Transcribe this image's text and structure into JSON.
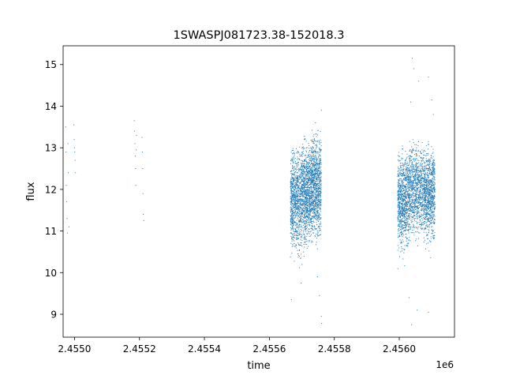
{
  "chart_data": {
    "type": "scatter",
    "title": "1SWASPJ081723.38-152018.3",
    "xlabel": "time",
    "ylabel": "flux",
    "x_offset_label": "1e6",
    "xlim": [
      2454865,
      2456070
    ],
    "ylim": [
      8.45,
      15.45
    ],
    "x_ticks": [
      {
        "value": 2454900,
        "label": "2.4550"
      },
      {
        "value": 2455100,
        "label": "2.4552"
      },
      {
        "value": 2455300,
        "label": "2.4554"
      },
      {
        "value": 2455500,
        "label": "2.4556"
      },
      {
        "value": 2455700,
        "label": "2.4558"
      },
      {
        "value": 2455900,
        "label": "2.4560"
      }
    ],
    "y_ticks": [
      {
        "value": 9,
        "label": "9"
      },
      {
        "value": 10,
        "label": "10"
      },
      {
        "value": 11,
        "label": "11"
      },
      {
        "value": 12,
        "label": "12"
      },
      {
        "value": 13,
        "label": "13"
      },
      {
        "value": 14,
        "label": "14"
      },
      {
        "value": 15,
        "label": "15"
      }
    ],
    "grid": false,
    "point_color": "#1f77b4",
    "series": [
      {
        "values": [
          {
            "x": 2454873,
            "y": 13.5
          },
          {
            "x": 2454874,
            "y": 12.9
          },
          {
            "x": 2454875,
            "y": 12.1
          },
          {
            "x": 2454876,
            "y": 11.7
          },
          {
            "x": 2454877,
            "y": 11.3
          },
          {
            "x": 2454878,
            "y": 10.95
          },
          {
            "x": 2454880,
            "y": 13.1
          },
          {
            "x": 2454881,
            "y": 12.4
          },
          {
            "x": 2454883,
            "y": 11.1
          },
          {
            "x": 2454898,
            "y": 13.55
          },
          {
            "x": 2454899,
            "y": 13.2
          },
          {
            "x": 2454900,
            "y": 13.0
          },
          {
            "x": 2454901,
            "y": 12.9
          },
          {
            "x": 2454902,
            "y": 12.7
          },
          {
            "x": 2454903,
            "y": 12.4
          },
          {
            "x": 2455084,
            "y": 13.65
          },
          {
            "x": 2455085,
            "y": 13.4
          },
          {
            "x": 2455086,
            "y": 13.1
          },
          {
            "x": 2455087,
            "y": 12.8
          },
          {
            "x": 2455088,
            "y": 12.5
          },
          {
            "x": 2455089,
            "y": 12.1
          },
          {
            "x": 2455090,
            "y": 12.95
          },
          {
            "x": 2455091,
            "y": 13.3
          },
          {
            "x": 2455108,
            "y": 13.25
          },
          {
            "x": 2455109,
            "y": 12.9
          },
          {
            "x": 2455110,
            "y": 12.5
          },
          {
            "x": 2455111,
            "y": 11.9
          },
          {
            "x": 2455112,
            "y": 11.4
          },
          {
            "x": 2455113,
            "y": 11.25
          }
        ],
        "bands": [
          {
            "x": [
              2455565,
              2455600
            ],
            "ymin": 10.0,
            "ymax": 12.9
          },
          {
            "x": [
              2455600,
              2455630
            ],
            "ymin": 10.2,
            "ymax": 13.1
          },
          {
            "x": [
              2455630,
              2455660
            ],
            "ymin": 10.3,
            "ymax": 13.3
          },
          {
            "x": [
              2455895,
              2455930
            ],
            "ymin": 10.1,
            "ymax": 12.9
          },
          {
            "x": [
              2455930,
              2455975
            ],
            "ymin": 10.4,
            "ymax": 13.0
          },
          {
            "x": [
              2455975,
              2456010
            ],
            "ymin": 10.3,
            "ymax": 13.0
          }
        ],
        "outliers": [
          {
            "x": 2455568,
            "y": 9.35
          },
          {
            "x": 2455598,
            "y": 9.75
          },
          {
            "x": 2455648,
            "y": 9.9
          },
          {
            "x": 2455654,
            "y": 9.45
          },
          {
            "x": 2455660,
            "y": 8.95
          },
          {
            "x": 2455661,
            "y": 8.78
          },
          {
            "x": 2455660,
            "y": 13.9
          },
          {
            "x": 2455642,
            "y": 13.6
          },
          {
            "x": 2455940,
            "y": 15.15
          },
          {
            "x": 2455945,
            "y": 14.9
          },
          {
            "x": 2455960,
            "y": 14.6
          },
          {
            "x": 2455935,
            "y": 14.1
          },
          {
            "x": 2455990,
            "y": 14.7
          },
          {
            "x": 2456000,
            "y": 14.15
          },
          {
            "x": 2456005,
            "y": 13.8
          },
          {
            "x": 2455938,
            "y": 8.75
          },
          {
            "x": 2455955,
            "y": 9.1
          },
          {
            "x": 2455990,
            "y": 9.05
          },
          {
            "x": 2455930,
            "y": 9.4
          }
        ]
      }
    ]
  }
}
